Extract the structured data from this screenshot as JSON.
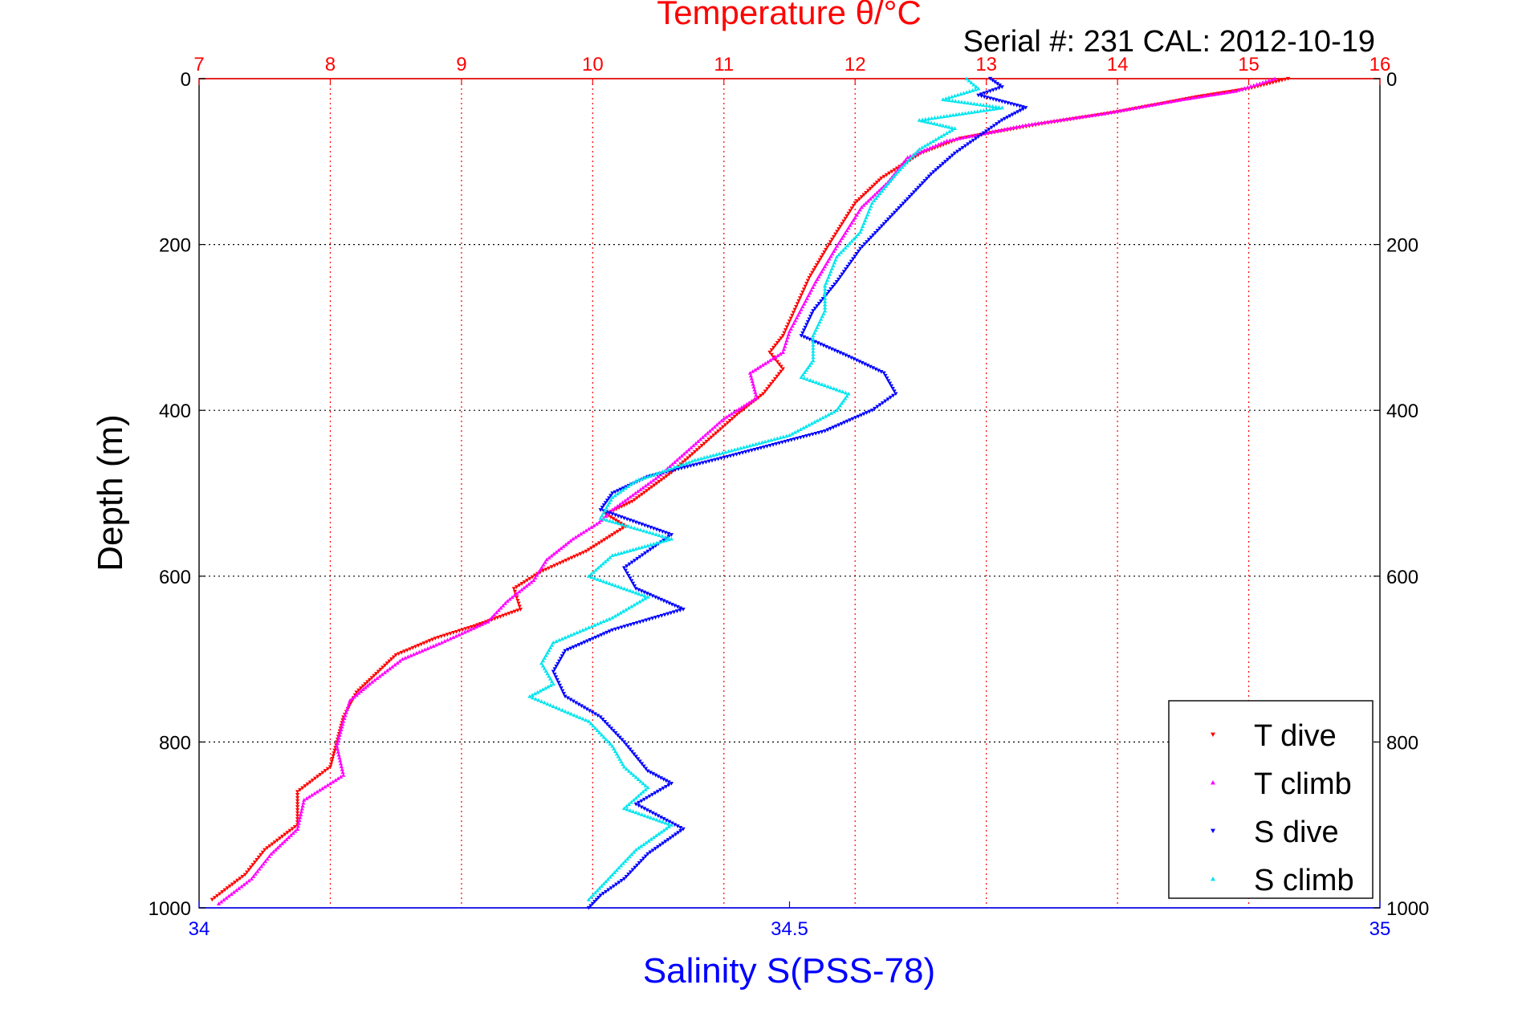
{
  "header": {
    "serial": "Serial #: 231  CAL: 2012-10-19"
  },
  "chart_data": {
    "type": "scatter",
    "title": "Temperature θ/°C",
    "ylabel": "Depth (m)",
    "xlabel": "Salinity S(PSS-78)",
    "temperature_axis": {
      "range": [
        7,
        16
      ],
      "ticks": [
        "7",
        "8",
        "9",
        "10",
        "11",
        "12",
        "13",
        "14",
        "15",
        "16"
      ],
      "color": "#ff0000"
    },
    "salinity_axis": {
      "range": [
        34,
        35
      ],
      "ticks": [
        "34",
        "34.5",
        "35"
      ],
      "color": "#0000ff"
    },
    "depth_axis": {
      "range": [
        0,
        1000
      ],
      "reversed": true,
      "ticks": [
        "0",
        "200",
        "400",
        "600",
        "800",
        "1000"
      ]
    },
    "grid": true,
    "legend": {
      "position": "bottom-right"
    },
    "series": [
      {
        "name": "T dive",
        "axis": "temperature",
        "color": "#ff0000",
        "marker": "triangle-down",
        "points": [
          [
            15.3,
            0
          ],
          [
            15.0,
            12
          ],
          [
            14.6,
            22
          ],
          [
            14.0,
            40
          ],
          [
            13.4,
            55
          ],
          [
            12.8,
            72
          ],
          [
            12.5,
            90
          ],
          [
            12.2,
            120
          ],
          [
            12.0,
            150
          ],
          [
            11.9,
            175
          ],
          [
            11.8,
            200
          ],
          [
            11.65,
            240
          ],
          [
            11.55,
            275
          ],
          [
            11.45,
            310
          ],
          [
            11.35,
            330
          ],
          [
            11.45,
            350
          ],
          [
            11.3,
            380
          ],
          [
            11.1,
            405
          ],
          [
            10.85,
            440
          ],
          [
            10.6,
            475
          ],
          [
            10.3,
            510
          ],
          [
            10.1,
            525
          ],
          [
            10.25,
            540
          ],
          [
            9.95,
            570
          ],
          [
            9.6,
            595
          ],
          [
            9.4,
            615
          ],
          [
            9.45,
            640
          ],
          [
            9.1,
            660
          ],
          [
            8.8,
            675
          ],
          [
            8.5,
            695
          ],
          [
            8.3,
            725
          ],
          [
            8.2,
            740
          ],
          [
            8.1,
            770
          ],
          [
            8.05,
            800
          ],
          [
            8.0,
            830
          ],
          [
            7.75,
            860
          ],
          [
            7.75,
            900
          ],
          [
            7.5,
            930
          ],
          [
            7.35,
            960
          ],
          [
            7.1,
            990
          ]
        ]
      },
      {
        "name": "T climb",
        "axis": "temperature",
        "color": "#ff00ff",
        "marker": "triangle-up",
        "points": [
          [
            15.2,
            0
          ],
          [
            14.9,
            15
          ],
          [
            14.5,
            25
          ],
          [
            13.9,
            42
          ],
          [
            13.3,
            56
          ],
          [
            12.7,
            75
          ],
          [
            12.4,
            95
          ],
          [
            12.25,
            125
          ],
          [
            12.05,
            155
          ],
          [
            11.95,
            180
          ],
          [
            11.85,
            205
          ],
          [
            11.7,
            245
          ],
          [
            11.6,
            275
          ],
          [
            11.5,
            305
          ],
          [
            11.45,
            330
          ],
          [
            11.2,
            355
          ],
          [
            11.25,
            385
          ],
          [
            11.0,
            410
          ],
          [
            10.75,
            445
          ],
          [
            10.5,
            480
          ],
          [
            10.15,
            520
          ],
          [
            10.05,
            535
          ],
          [
            9.85,
            555
          ],
          [
            9.65,
            580
          ],
          [
            9.55,
            605
          ],
          [
            9.35,
            630
          ],
          [
            9.2,
            655
          ],
          [
            8.85,
            680
          ],
          [
            8.55,
            700
          ],
          [
            8.3,
            730
          ],
          [
            8.15,
            750
          ],
          [
            8.1,
            775
          ],
          [
            8.05,
            805
          ],
          [
            8.1,
            840
          ],
          [
            7.8,
            870
          ],
          [
            7.75,
            905
          ],
          [
            7.55,
            935
          ],
          [
            7.4,
            965
          ],
          [
            7.15,
            995
          ]
        ]
      },
      {
        "name": "S dive",
        "axis": "salinity",
        "color": "#0000ff",
        "marker": "triangle-down",
        "points": [
          [
            34.67,
            0
          ],
          [
            34.68,
            10
          ],
          [
            34.66,
            20
          ],
          [
            34.7,
            35
          ],
          [
            34.68,
            50
          ],
          [
            34.66,
            70
          ],
          [
            34.64,
            90
          ],
          [
            34.62,
            115
          ],
          [
            34.6,
            145
          ],
          [
            34.58,
            175
          ],
          [
            34.56,
            205
          ],
          [
            34.54,
            245
          ],
          [
            34.52,
            280
          ],
          [
            34.51,
            310
          ],
          [
            34.55,
            335
          ],
          [
            34.58,
            355
          ],
          [
            34.59,
            380
          ],
          [
            34.57,
            400
          ],
          [
            34.53,
            425
          ],
          [
            34.45,
            455
          ],
          [
            34.38,
            480
          ],
          [
            34.35,
            500
          ],
          [
            34.34,
            520
          ],
          [
            34.4,
            550
          ],
          [
            34.38,
            570
          ],
          [
            34.36,
            590
          ],
          [
            34.37,
            615
          ],
          [
            34.41,
            640
          ],
          [
            34.35,
            665
          ],
          [
            34.31,
            690
          ],
          [
            34.3,
            715
          ],
          [
            34.31,
            745
          ],
          [
            34.34,
            770
          ],
          [
            34.36,
            800
          ],
          [
            34.38,
            835
          ],
          [
            34.4,
            850
          ],
          [
            34.37,
            875
          ],
          [
            34.41,
            905
          ],
          [
            34.38,
            935
          ],
          [
            34.36,
            965
          ],
          [
            34.34,
            985
          ],
          [
            34.33,
            1000
          ]
        ]
      },
      {
        "name": "S climb",
        "axis": "salinity",
        "color": "#00e5ee",
        "marker": "triangle-up",
        "points": [
          [
            34.65,
            0
          ],
          [
            34.66,
            12
          ],
          [
            34.63,
            25
          ],
          [
            34.68,
            35
          ],
          [
            34.61,
            50
          ],
          [
            34.64,
            60
          ],
          [
            34.61,
            85
          ],
          [
            34.59,
            115
          ],
          [
            34.57,
            150
          ],
          [
            34.56,
            185
          ],
          [
            34.54,
            215
          ],
          [
            34.53,
            250
          ],
          [
            34.53,
            280
          ],
          [
            34.52,
            310
          ],
          [
            34.52,
            340
          ],
          [
            34.51,
            360
          ],
          [
            34.55,
            380
          ],
          [
            34.54,
            400
          ],
          [
            34.5,
            430
          ],
          [
            34.42,
            460
          ],
          [
            34.37,
            485
          ],
          [
            34.35,
            505
          ],
          [
            34.34,
            530
          ],
          [
            34.4,
            555
          ],
          [
            34.35,
            575
          ],
          [
            34.33,
            600
          ],
          [
            34.38,
            625
          ],
          [
            34.35,
            650
          ],
          [
            34.3,
            680
          ],
          [
            34.29,
            705
          ],
          [
            34.3,
            730
          ],
          [
            34.28,
            745
          ],
          [
            34.33,
            775
          ],
          [
            34.35,
            805
          ],
          [
            34.36,
            830
          ],
          [
            34.38,
            855
          ],
          [
            34.36,
            880
          ],
          [
            34.4,
            900
          ],
          [
            34.37,
            930
          ],
          [
            34.35,
            960
          ],
          [
            34.33,
            990
          ]
        ]
      }
    ]
  }
}
